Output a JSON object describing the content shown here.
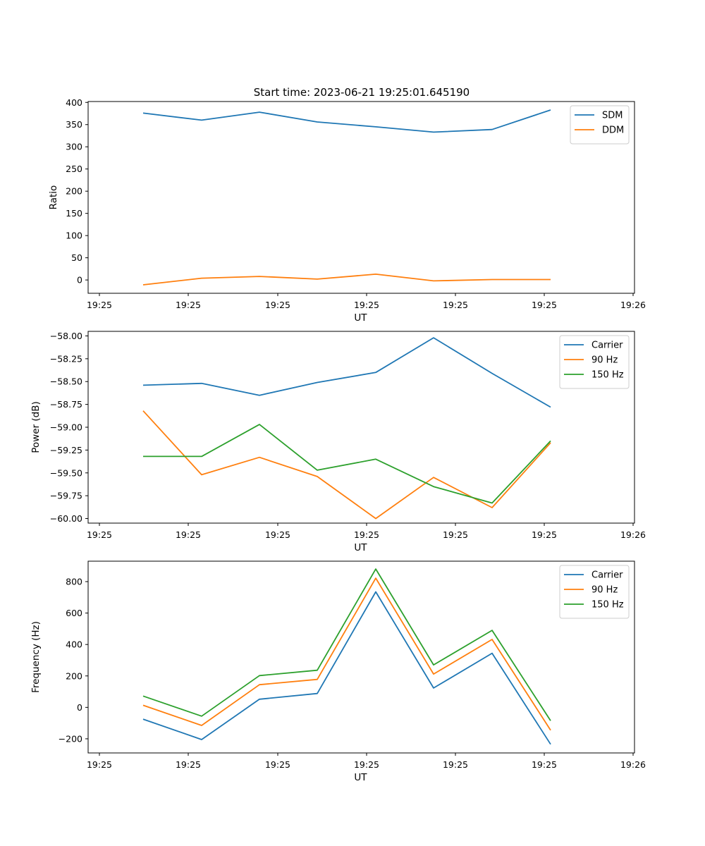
{
  "figure": {
    "title": "Start time: 2023-06-21 19:25:01.645190"
  },
  "colors": {
    "blue": "#1f77b4",
    "orange": "#ff7f0e",
    "green": "#2ca02c"
  },
  "chart_data": [
    {
      "type": "line",
      "title": "Start time: 2023-06-21 19:25:01.645190",
      "xlabel": "UT",
      "ylabel": "Ratio",
      "x_tick_labels": [
        "19:25",
        "19:25",
        "19:25",
        "19:25",
        "19:25",
        "19:25",
        "19:26"
      ],
      "ylim": [
        -30,
        402
      ],
      "y_ticks": [
        0,
        50,
        100,
        150,
        200,
        250,
        300,
        350,
        400
      ],
      "y_tick_labels": [
        "0",
        "50",
        "100",
        "150",
        "200",
        "250",
        "300",
        "350",
        "400"
      ],
      "grid": false,
      "legend_placement": "upper right",
      "series": [
        {
          "name": "SDM",
          "color": "#1f77b4",
          "values": [
            376,
            360,
            378,
            356,
            345,
            333,
            339,
            383
          ]
        },
        {
          "name": "DDM",
          "color": "#ff7f0e",
          "values": [
            -11,
            4,
            8,
            2,
            13,
            -2,
            1,
            1
          ]
        }
      ]
    },
    {
      "type": "line",
      "title": "",
      "xlabel": "UT",
      "ylabel": "Power (dB)",
      "x_tick_labels": [
        "19:25",
        "19:25",
        "19:25",
        "19:25",
        "19:25",
        "19:25",
        "19:26"
      ],
      "ylim": [
        -60.05,
        -57.95
      ],
      "y_ticks": [
        -60.0,
        -59.75,
        -59.5,
        -59.25,
        -59.0,
        -58.75,
        -58.5,
        -58.25,
        -58.0
      ],
      "y_tick_labels": [
        "−60.00",
        "−59.75",
        "−59.50",
        "−59.25",
        "−59.00",
        "−58.75",
        "−58.50",
        "−58.25",
        "−58.00"
      ],
      "grid": false,
      "legend_placement": "upper right",
      "series": [
        {
          "name": "Carrier",
          "color": "#1f77b4",
          "values": [
            -58.54,
            -58.52,
            -58.65,
            -58.51,
            -58.4,
            -58.02,
            -58.41,
            -58.78
          ]
        },
        {
          "name": "90 Hz",
          "color": "#ff7f0e",
          "values": [
            -58.82,
            -59.52,
            -59.33,
            -59.54,
            -60.0,
            -59.55,
            -59.88,
            -59.17
          ]
        },
        {
          "name": "150 Hz",
          "color": "#2ca02c",
          "values": [
            -59.32,
            -59.32,
            -58.97,
            -59.47,
            -59.35,
            -59.65,
            -59.83,
            -59.15
          ]
        }
      ]
    },
    {
      "type": "line",
      "title": "",
      "xlabel": "UT",
      "ylabel": "Frequency (Hz)",
      "x_tick_labels": [
        "19:25",
        "19:25",
        "19:25",
        "19:25",
        "19:25",
        "19:25",
        "19:26"
      ],
      "ylim": [
        -290,
        930
      ],
      "y_ticks": [
        -200,
        0,
        200,
        400,
        600,
        800
      ],
      "y_tick_labels": [
        "−200",
        "0",
        "200",
        "400",
        "600",
        "800"
      ],
      "grid": false,
      "legend_placement": "upper right",
      "series": [
        {
          "name": "Carrier",
          "color": "#1f77b4",
          "values": [
            -75,
            -205,
            52,
            88,
            735,
            123,
            344,
            -235
          ]
        },
        {
          "name": "90 Hz",
          "color": "#ff7f0e",
          "values": [
            13,
            -115,
            144,
            178,
            822,
            212,
            432,
            -145
          ]
        },
        {
          "name": "150 Hz",
          "color": "#2ca02c",
          "values": [
            72,
            -56,
            202,
            236,
            880,
            270,
            490,
            -85
          ]
        }
      ]
    }
  ]
}
